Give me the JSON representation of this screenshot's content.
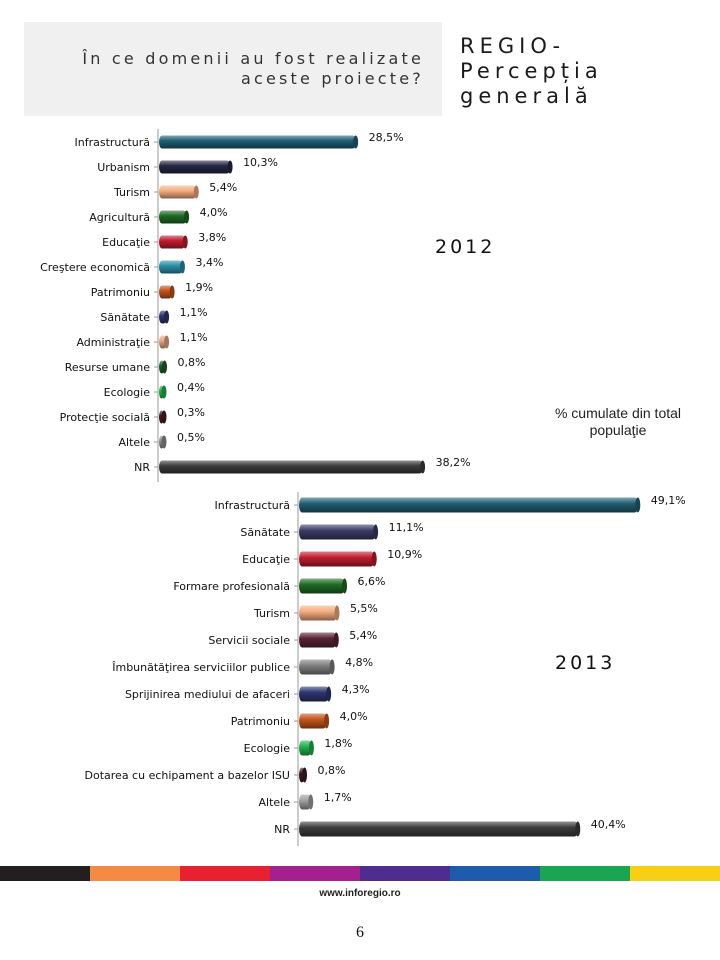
{
  "header": {
    "question": "În ce domenii au fost realizate aceste proiecte?",
    "title": "REGIO-\nPercepția\ngenerală"
  },
  "note": "% cumulate din total populaţie",
  "chart_data": [
    {
      "type": "bar",
      "orientation": "horizontal",
      "year_label": "2012",
      "unit": "%",
      "xlim": [
        0,
        40
      ],
      "categories": [
        "Infrastructură",
        "Urbanism",
        "Turism",
        "Agricultură",
        "Educaţie",
        "Creştere economică",
        "Patrimoniu",
        "Sănătate",
        "Administraţie",
        "Resurse umane",
        "Ecologie",
        "Protecţie socială",
        "Altele",
        "NR"
      ],
      "values": [
        28.5,
        10.3,
        5.4,
        4.0,
        3.8,
        3.4,
        1.9,
        1.1,
        1.1,
        0.8,
        0.4,
        0.3,
        0.5,
        38.2
      ],
      "labels": [
        "28,5%",
        "10,3%",
        "5,4%",
        "4,0%",
        "3,8%",
        "3,4%",
        "1,9%",
        "1,1%",
        "1,1%",
        "0,8%",
        "0,4%",
        "0,3%",
        "0,5%",
        "38,2%"
      ],
      "colors": [
        "#1f5f73",
        "#262744",
        "#f5ad7e",
        "#1f6b24",
        "#c01d2e",
        "#2a8fa8",
        "#c4541b",
        "#2d3570",
        "#eaa883",
        "#1e5f28",
        "#22b34e",
        "#4a1a22",
        "#909090",
        "#3c3c3c"
      ]
    },
    {
      "type": "bar",
      "orientation": "horizontal",
      "year_label": "2013",
      "unit": "%",
      "xlim": [
        0,
        50
      ],
      "categories": [
        "Infrastructură",
        "Sănătate",
        "Educaţie",
        "Formare profesională",
        "Turism",
        "Servicii sociale",
        "Îmbunătăţirea serviciilor publice",
        "Sprijinirea mediului de afaceri",
        "Patrimoniu",
        "Ecologie",
        "Dotarea cu echipament a bazelor ISU",
        "Altele",
        "NR"
      ],
      "values": [
        49.1,
        11.1,
        10.9,
        6.6,
        5.5,
        5.4,
        4.8,
        4.3,
        4.0,
        1.8,
        0.8,
        1.7,
        40.4
      ],
      "labels": [
        "49,1%",
        "11,1%",
        "10,9%",
        "6,6%",
        "5,5%",
        "5,4%",
        "4,8%",
        "4,3%",
        "4,0%",
        "1,8%",
        "0,8%",
        "1,7%",
        "40,4%"
      ],
      "colors": [
        "#1f5f73",
        "#3b3b66",
        "#c01d2e",
        "#1f6b24",
        "#f5ad7e",
        "#5a2233",
        "#7f7f7f",
        "#2d3570",
        "#c4541b",
        "#22b34e",
        "#3a1c22",
        "#a0a0a0",
        "#3c3c3c"
      ]
    }
  ],
  "footer": {
    "website": "www.inforegio.ro",
    "page_number": "6",
    "stripe_colors": [
      "#231f20",
      "#f58a45",
      "#e8202f",
      "#a3218e",
      "#4f2d8e",
      "#1f5bab",
      "#1aa550",
      "#f8cf14"
    ]
  }
}
